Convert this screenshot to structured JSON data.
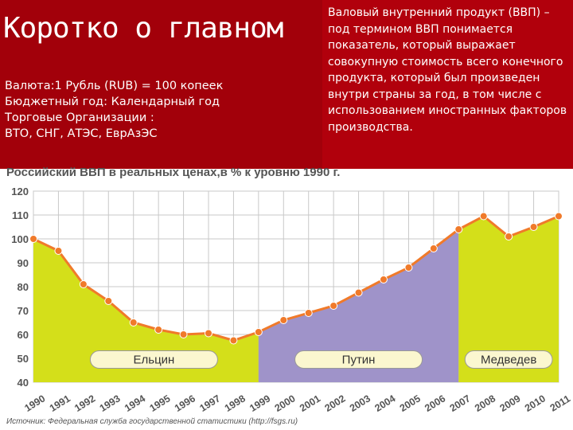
{
  "slide": {
    "title": "Коротко о главном",
    "info_lines": [
      "Валюта:1 Рубль (RUB) = 100 копеек",
      "Бюджетный год: Календарный год",
      "Торговые Организации :",
      "ВТО, СНГ, АТЭС, ЕврАзЭС"
    ],
    "definition": "Валовый внутренний продукт (ВВП) – под термином ВВП понимается показатель, который выражает совокупную стоимость всего конечного продукта, который был произведен внутри страны за год, в том числе с использованием иностранных факторов производства.",
    "source": "Источник: Федеральная служба государственной статистики (http://fsgs.ru)"
  },
  "colors": {
    "header_red": "#b1000c",
    "yeltsin_fill": "#d4df1a",
    "putin_fill": "#9f93c9",
    "medvedev_fill": "#d4df1a",
    "line": "#f07a2a",
    "marker": "#f07a2a"
  },
  "chart_data": {
    "type": "area",
    "title": "Российский ВВП в реальных ценах,в % к уровню 1990 г.",
    "x": [
      "1990",
      "1991",
      "1992",
      "1993",
      "1994",
      "1995",
      "1996",
      "1997",
      "1998",
      "1999",
      "2000",
      "2001",
      "2002",
      "2003",
      "2004",
      "2005",
      "2006",
      "2007",
      "2008",
      "2009",
      "2010",
      "2011"
    ],
    "values": [
      100,
      95,
      81,
      74,
      65,
      62,
      60,
      60.5,
      57.5,
      61,
      66,
      69,
      72,
      77.5,
      83,
      88,
      96,
      104,
      109.5,
      101,
      105,
      109.5
    ],
    "ylim": [
      40,
      120
    ],
    "yticks": [
      40,
      50,
      60,
      70,
      80,
      90,
      100,
      110,
      120
    ],
    "grid": true,
    "periods": [
      {
        "name": "Ельцин",
        "from": "1990",
        "to": "1999",
        "color": "#d4df1a"
      },
      {
        "name": "Путин",
        "from": "1999",
        "to": "2007",
        "color": "#9f93c9"
      },
      {
        "name": "Медведев",
        "from": "2007",
        "to": "2011",
        "color": "#d4df1a"
      }
    ]
  }
}
